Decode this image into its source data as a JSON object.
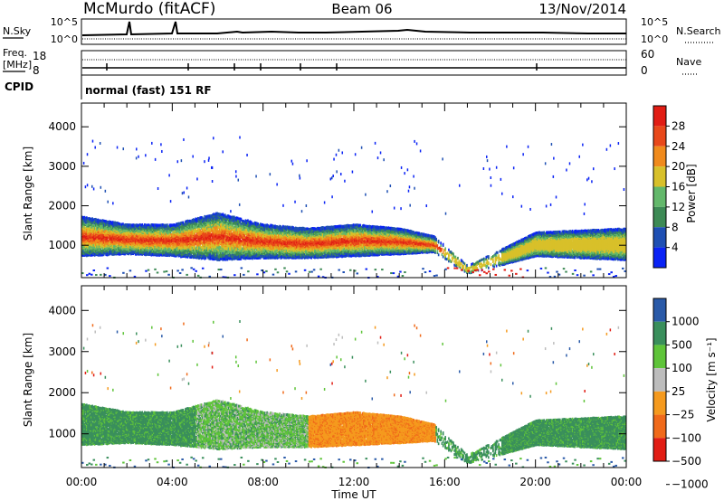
{
  "header": {
    "title": "McMurdo (fitACF)",
    "beam": "Beam 06",
    "date": "13/Nov/2014"
  },
  "noise_panel": {
    "left_label": "N.Sky",
    "left_ticks": [
      "10^5",
      "10^0"
    ],
    "right_ticks": [
      "10^5",
      "10^0"
    ],
    "right_label": "N.Search"
  },
  "freq_panel": {
    "left_label_line1": "Freq.",
    "left_label_line2": "[MHz]",
    "left_ticks": [
      "18",
      "8"
    ],
    "right_ticks": [
      "60",
      "0"
    ],
    "right_label": "Nave"
  },
  "cpid": {
    "label": "CPID",
    "mode_text": "normal (fast) 151 RF"
  },
  "colors": {
    "power_scale": [
      "#0a23f5",
      "#1e4fb3",
      "#3d8a55",
      "#63b86b",
      "#d8c02a",
      "#f08a1c",
      "#e8481a",
      "#e11d14"
    ],
    "velocity_scale": [
      "#e11d14",
      "#f06a1a",
      "#f59a1e",
      "#bdbdbd",
      "#5fc43a",
      "#3a8f5c",
      "#2a5aa8"
    ]
  },
  "chart_data": [
    {
      "type": "heatmap",
      "panel": "power",
      "ylabel": "Slant Range [km]",
      "xlabel": "",
      "x_ticks": [
        "00:00",
        "04:00",
        "08:00",
        "12:00",
        "16:00",
        "20:00",
        "00:00"
      ],
      "y_ticks": [
        "1000",
        "2000",
        "3000",
        "4000"
      ],
      "xlim_hours": [
        0,
        24
      ],
      "ylim_km": [
        180,
        4600
      ],
      "colorbar": {
        "label": "Power [dB]",
        "tick_labels": [
          "4",
          "8",
          "12",
          "16",
          "20",
          "24",
          "28"
        ]
      },
      "dominant_band": [
        {
          "hour": 0,
          "low_km": 700,
          "high_km": 1700
        },
        {
          "hour": 2,
          "low_km": 750,
          "high_km": 1500
        },
        {
          "hour": 4,
          "low_km": 700,
          "high_km": 1500
        },
        {
          "hour": 6,
          "low_km": 600,
          "high_km": 1800
        },
        {
          "hour": 8,
          "low_km": 650,
          "high_km": 1500
        },
        {
          "hour": 10,
          "low_km": 650,
          "high_km": 1400
        },
        {
          "hour": 12,
          "low_km": 700,
          "high_km": 1500
        },
        {
          "hour": 14,
          "low_km": 750,
          "high_km": 1400
        },
        {
          "hour": 15.5,
          "low_km": 800,
          "high_km": 1200
        },
        {
          "hour": 17,
          "low_km": 250,
          "high_km": 450
        },
        {
          "hour": 20,
          "low_km": 700,
          "high_km": 1300
        },
        {
          "hour": 24,
          "low_km": 600,
          "high_km": 1400
        }
      ]
    },
    {
      "type": "heatmap",
      "panel": "velocity",
      "ylabel": "Slant Range [km]",
      "xlabel": "Time UT",
      "x_ticks": [
        "00:00",
        "04:00",
        "08:00",
        "12:00",
        "16:00",
        "20:00",
        "00:00"
      ],
      "y_ticks": [
        "1000",
        "2000",
        "3000",
        "4000"
      ],
      "xlim_hours": [
        0,
        24
      ],
      "ylim_km": [
        180,
        4600
      ],
      "colorbar": {
        "label": "Velocity [m s⁻¹]",
        "tick_labels": [
          "1000",
          "500",
          "100",
          "25",
          "−25",
          "−100",
          "−500",
          "−1000"
        ]
      }
    }
  ]
}
